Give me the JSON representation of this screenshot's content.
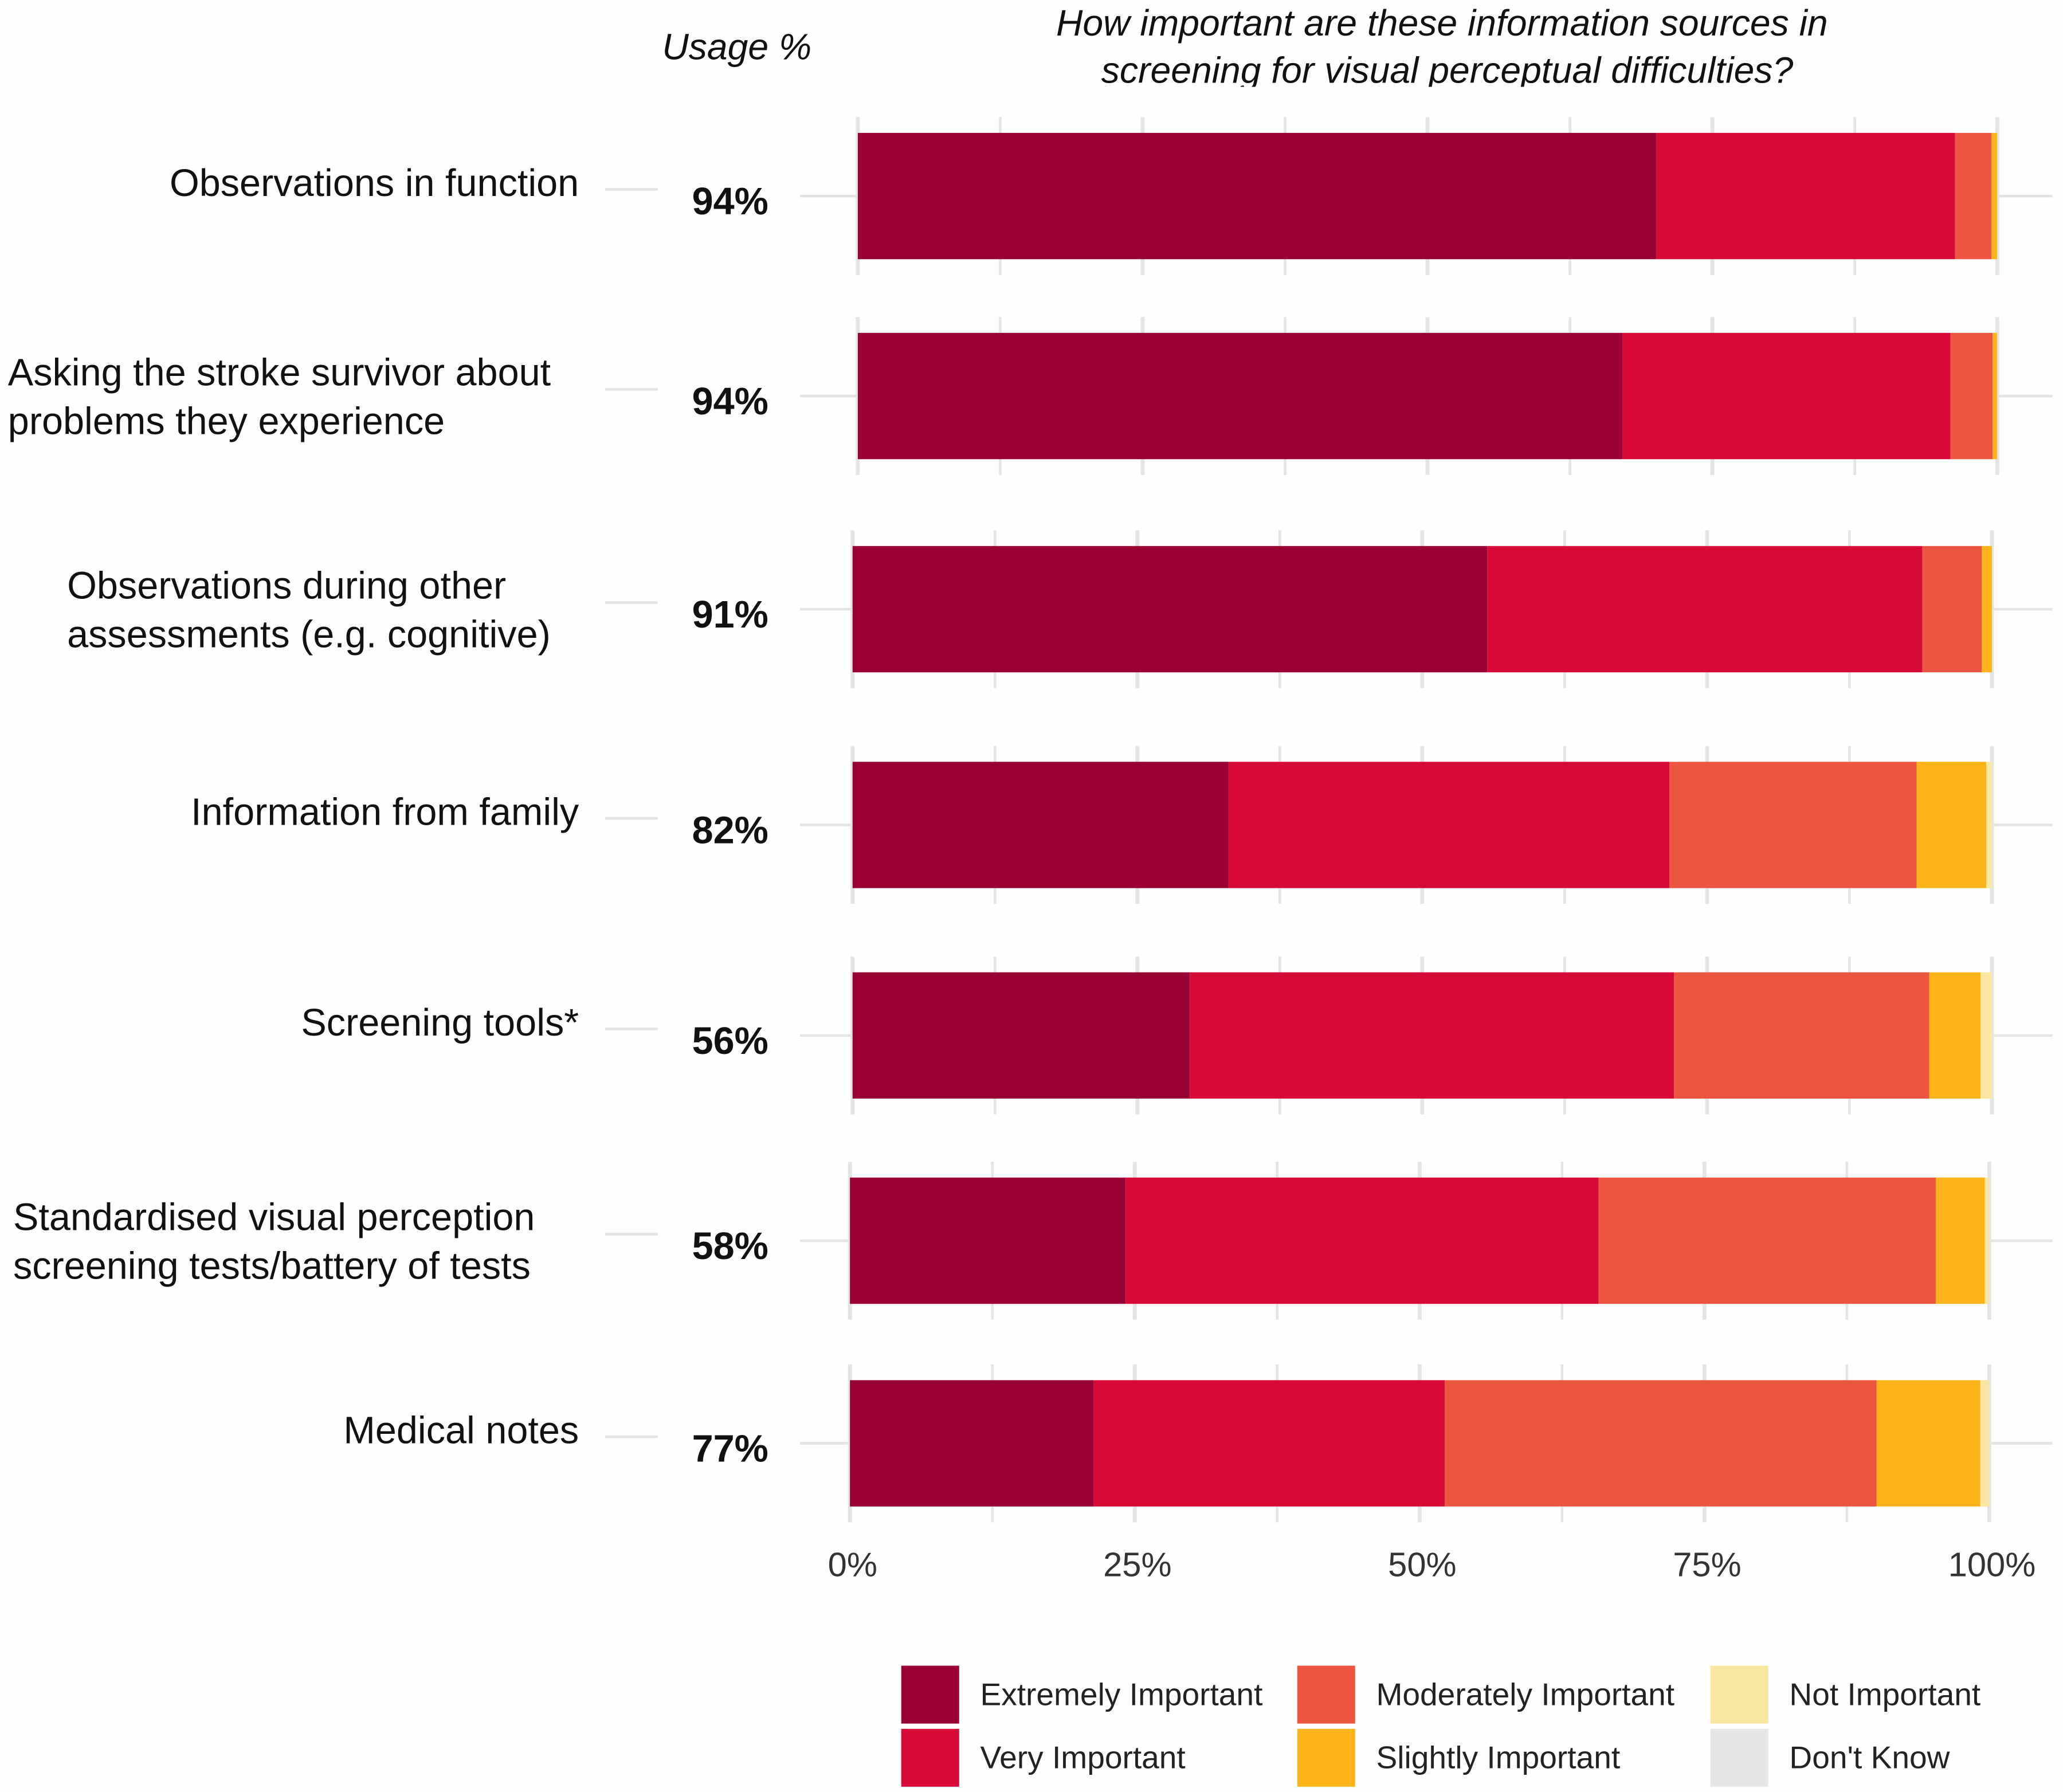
{
  "chart_data": {
    "type": "bar",
    "orientation": "horizontal",
    "stacked": true,
    "title": "How important are these information sources in screening for visual perceptual difficulties?",
    "usage_header": "Usage %",
    "categories": [
      [
        "Observations in function"
      ],
      [
        "Asking the stroke survivor about",
        "problems they experience"
      ],
      [
        "Observations during other",
        "assessments (e.g. cognitive)"
      ],
      [
        "Information from family"
      ],
      [
        "Screening tools*"
      ],
      [
        "Standardised visual perception",
        "screening tests/battery of tests"
      ],
      [
        "Medical notes"
      ]
    ],
    "usage": [
      "94%",
      "94%",
      "91%",
      "82%",
      "56%",
      "58%",
      "77%"
    ],
    "series": [
      {
        "name": "Extremely Important",
        "color": "#990033",
        "values": [
          70.1,
          67.1,
          55.7,
          33.0,
          29.6,
          24.2,
          21.4
        ]
      },
      {
        "name": "Very Important",
        "color": "#d70a37",
        "values": [
          26.2,
          28.8,
          38.2,
          38.7,
          42.5,
          41.5,
          30.8
        ]
      },
      {
        "name": "Moderately Important",
        "color": "#ec5640",
        "values": [
          3.2,
          3.7,
          5.2,
          21.7,
          22.4,
          29.6,
          37.9
        ]
      },
      {
        "name": "Slightly Important",
        "color": "#fdb31a",
        "values": [
          0.5,
          0.4,
          0.9,
          6.1,
          4.5,
          4.3,
          9.1
        ]
      },
      {
        "name": "Not Important",
        "color": "#f9e6a3",
        "values": [
          0,
          0,
          0,
          0.5,
          1.0,
          0.4,
          0.8
        ]
      },
      {
        "name": "Don't Know",
        "color": "#e6e6e6",
        "values": [
          0,
          0,
          0,
          0,
          0,
          0,
          0
        ]
      }
    ],
    "xticks": [
      "0%",
      "25%",
      "50%",
      "75%",
      "100%"
    ],
    "xlim": [
      0,
      100
    ],
    "grid": true,
    "legend": "bottom-right"
  }
}
